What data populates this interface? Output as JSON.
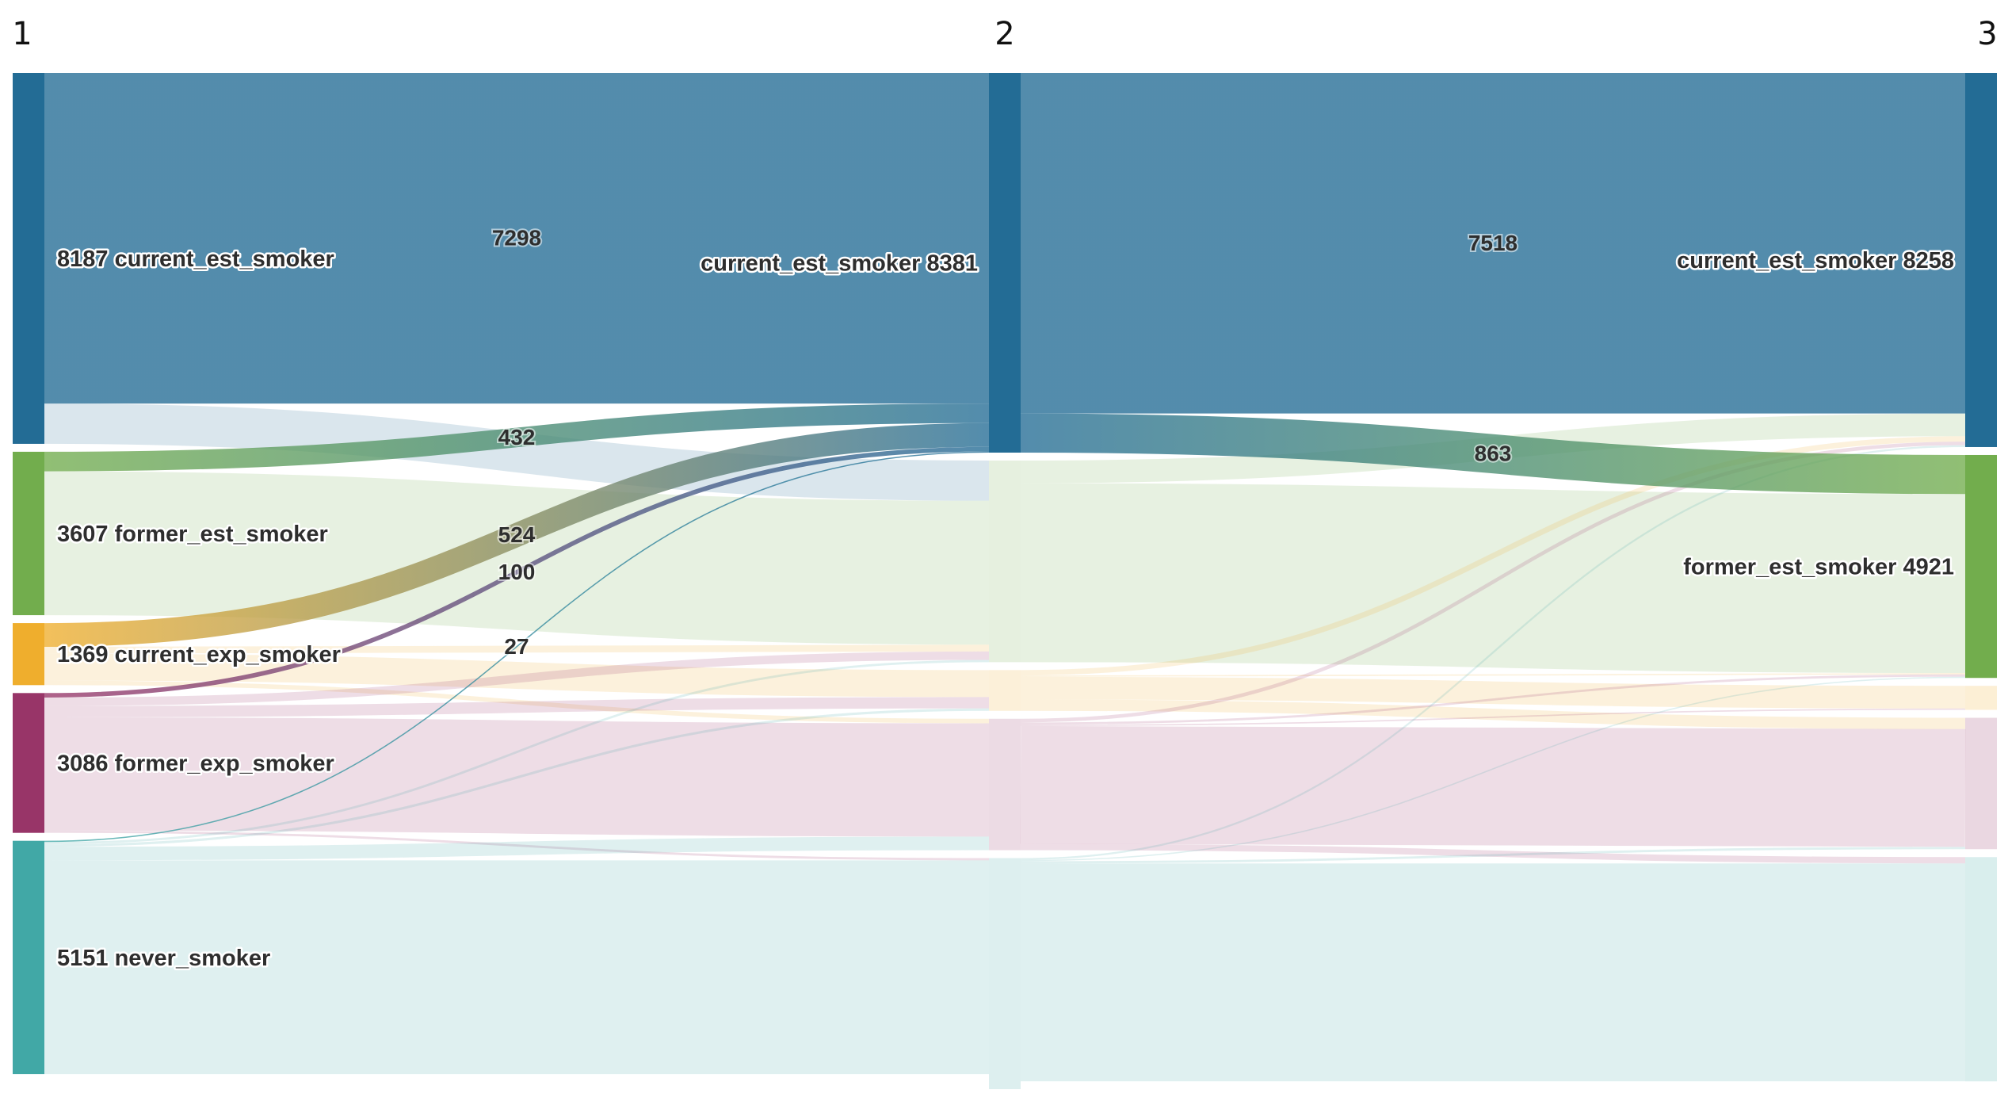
{
  "chart_data": {
    "type": "sankey",
    "stages": [
      "1",
      "2",
      "3"
    ],
    "colors": {
      "current_est_smoker": "#236c95",
      "former_est_smoker": "#72ad4d",
      "current_exp_smoker": "#efae2d",
      "former_exp_smoker": "#983568",
      "never_smoker": "#41a8a6"
    },
    "nodes": [
      {
        "id": "s1_current_est_smoker",
        "stage": 0,
        "category": "current_est_smoker",
        "label": "8187 current_est_smoker",
        "value": 8187
      },
      {
        "id": "s1_former_est_smoker",
        "stage": 0,
        "category": "former_est_smoker",
        "label": "3607 former_est_smoker",
        "value": 3607
      },
      {
        "id": "s1_current_exp_smoker",
        "stage": 0,
        "category": "current_exp_smoker",
        "label": "1369 current_exp_smoker",
        "value": 1369
      },
      {
        "id": "s1_former_exp_smoker",
        "stage": 0,
        "category": "former_exp_smoker",
        "label": "3086 former_exp_smoker",
        "value": 3086
      },
      {
        "id": "s1_never_smoker",
        "stage": 0,
        "category": "never_smoker",
        "label": "5151 never_smoker",
        "value": 5151
      },
      {
        "id": "s2_current_est_smoker",
        "stage": 1,
        "category": "current_est_smoker",
        "label": "current_est_smoker 8381",
        "value": 8381
      },
      {
        "id": "s2_former_est_smoker",
        "stage": 1,
        "category": "former_est_smoker",
        "label": "",
        "value": 4450
      },
      {
        "id": "s2_current_exp_smoker",
        "stage": 1,
        "category": "current_exp_smoker",
        "label": "",
        "value": 900
      },
      {
        "id": "s2_former_exp_smoker",
        "stage": 1,
        "category": "former_exp_smoker",
        "label": "",
        "value": 2900
      },
      {
        "id": "s2_never_smoker",
        "stage": 1,
        "category": "never_smoker",
        "label": "",
        "value": 5100
      },
      {
        "id": "s3_current_est_smoker",
        "stage": 2,
        "category": "current_est_smoker",
        "label": "current_est_smoker 8258",
        "value": 8258
      },
      {
        "id": "s3_former_est_smoker",
        "stage": 2,
        "category": "former_est_smoker",
        "label": "former_est_smoker 4921",
        "value": 4921
      },
      {
        "id": "s3_current_exp_smoker",
        "stage": 2,
        "category": "current_exp_smoker",
        "label": "",
        "value": 530
      },
      {
        "id": "s3_former_exp_smoker",
        "stage": 2,
        "category": "former_exp_smoker",
        "label": "",
        "value": 2900
      },
      {
        "id": "s3_never_smoker",
        "stage": 2,
        "category": "never_smoker",
        "label": "",
        "value": 4950
      }
    ],
    "links": [
      {
        "source": "s1_current_est_smoker",
        "target": "s2_current_est_smoker",
        "value": 7298,
        "label": "7298",
        "highlight": true
      },
      {
        "source": "s1_current_est_smoker",
        "target": "s2_former_est_smoker",
        "value": 889,
        "label": "",
        "highlight": false
      },
      {
        "source": "s1_former_est_smoker",
        "target": "s2_current_est_smoker",
        "value": 432,
        "label": "432",
        "highlight": true
      },
      {
        "source": "s1_former_est_smoker",
        "target": "s2_former_est_smoker",
        "value": 3175,
        "label": "",
        "highlight": false
      },
      {
        "source": "s1_current_exp_smoker",
        "target": "s2_current_est_smoker",
        "value": 524,
        "label": "524",
        "highlight": true
      },
      {
        "source": "s1_current_exp_smoker",
        "target": "s2_former_est_smoker",
        "value": 150,
        "label": "",
        "highlight": false
      },
      {
        "source": "s1_current_exp_smoker",
        "target": "s2_current_exp_smoker",
        "value": 595,
        "label": "",
        "highlight": false
      },
      {
        "source": "s1_current_exp_smoker",
        "target": "s2_former_exp_smoker",
        "value": 100,
        "label": "",
        "highlight": false
      },
      {
        "source": "s1_former_exp_smoker",
        "target": "s2_current_est_smoker",
        "value": 100,
        "label": "100",
        "highlight": true
      },
      {
        "source": "s1_former_exp_smoker",
        "target": "s2_former_est_smoker",
        "value": 186,
        "label": "",
        "highlight": false
      },
      {
        "source": "s1_former_exp_smoker",
        "target": "s2_current_exp_smoker",
        "value": 250,
        "label": "",
        "highlight": false
      },
      {
        "source": "s1_former_exp_smoker",
        "target": "s2_former_exp_smoker",
        "value": 2500,
        "label": "",
        "highlight": false
      },
      {
        "source": "s1_former_exp_smoker",
        "target": "s2_never_smoker",
        "value": 50,
        "label": "",
        "highlight": false
      },
      {
        "source": "s1_never_smoker",
        "target": "s2_current_est_smoker",
        "value": 27,
        "label": "27",
        "highlight": true
      },
      {
        "source": "s1_never_smoker",
        "target": "s2_former_est_smoker",
        "value": 50,
        "label": "",
        "highlight": false
      },
      {
        "source": "s1_never_smoker",
        "target": "s2_current_exp_smoker",
        "value": 55,
        "label": "",
        "highlight": false
      },
      {
        "source": "s1_never_smoker",
        "target": "s2_former_exp_smoker",
        "value": 300,
        "label": "",
        "highlight": false
      },
      {
        "source": "s1_never_smoker",
        "target": "s2_never_smoker",
        "value": 4719,
        "label": "",
        "highlight": false
      },
      {
        "source": "s2_current_est_smoker",
        "target": "s3_current_est_smoker",
        "value": 7518,
        "label": "7518",
        "highlight": true
      },
      {
        "source": "s2_current_est_smoker",
        "target": "s3_former_est_smoker",
        "value": 863,
        "label": "863",
        "highlight": true
      },
      {
        "source": "s2_former_est_smoker",
        "target": "s3_current_est_smoker",
        "value": 500,
        "label": "",
        "highlight": false
      },
      {
        "source": "s2_former_est_smoker",
        "target": "s3_former_est_smoker",
        "value": 3950,
        "label": "",
        "highlight": false
      },
      {
        "source": "s2_current_exp_smoker",
        "target": "s3_current_est_smoker",
        "value": 120,
        "label": "",
        "highlight": false
      },
      {
        "source": "s2_current_exp_smoker",
        "target": "s3_former_est_smoker",
        "value": 30,
        "label": "",
        "highlight": false
      },
      {
        "source": "s2_current_exp_smoker",
        "target": "s3_current_exp_smoker",
        "value": 500,
        "label": "",
        "highlight": false
      },
      {
        "source": "s2_current_exp_smoker",
        "target": "s3_former_exp_smoker",
        "value": 250,
        "label": "",
        "highlight": false
      },
      {
        "source": "s2_former_exp_smoker",
        "target": "s3_current_est_smoker",
        "value": 80,
        "label": "",
        "highlight": false
      },
      {
        "source": "s2_former_exp_smoker",
        "target": "s3_former_est_smoker",
        "value": 50,
        "label": "",
        "highlight": false
      },
      {
        "source": "s2_former_exp_smoker",
        "target": "s3_current_exp_smoker",
        "value": 30,
        "label": "",
        "highlight": false
      },
      {
        "source": "s2_former_exp_smoker",
        "target": "s3_former_exp_smoker",
        "value": 2600,
        "label": "",
        "highlight": false
      },
      {
        "source": "s2_former_exp_smoker",
        "target": "s3_never_smoker",
        "value": 140,
        "label": "",
        "highlight": false
      },
      {
        "source": "s2_never_smoker",
        "target": "s3_current_est_smoker",
        "value": 40,
        "label": "",
        "highlight": false
      },
      {
        "source": "s2_never_smoker",
        "target": "s3_former_est_smoker",
        "value": 28,
        "label": "",
        "highlight": false
      },
      {
        "source": "s2_never_smoker",
        "target": "s3_former_exp_smoker",
        "value": 50,
        "label": "",
        "highlight": false
      },
      {
        "source": "s2_never_smoker",
        "target": "s3_never_smoker",
        "value": 4810,
        "label": "",
        "highlight": false
      }
    ]
  }
}
